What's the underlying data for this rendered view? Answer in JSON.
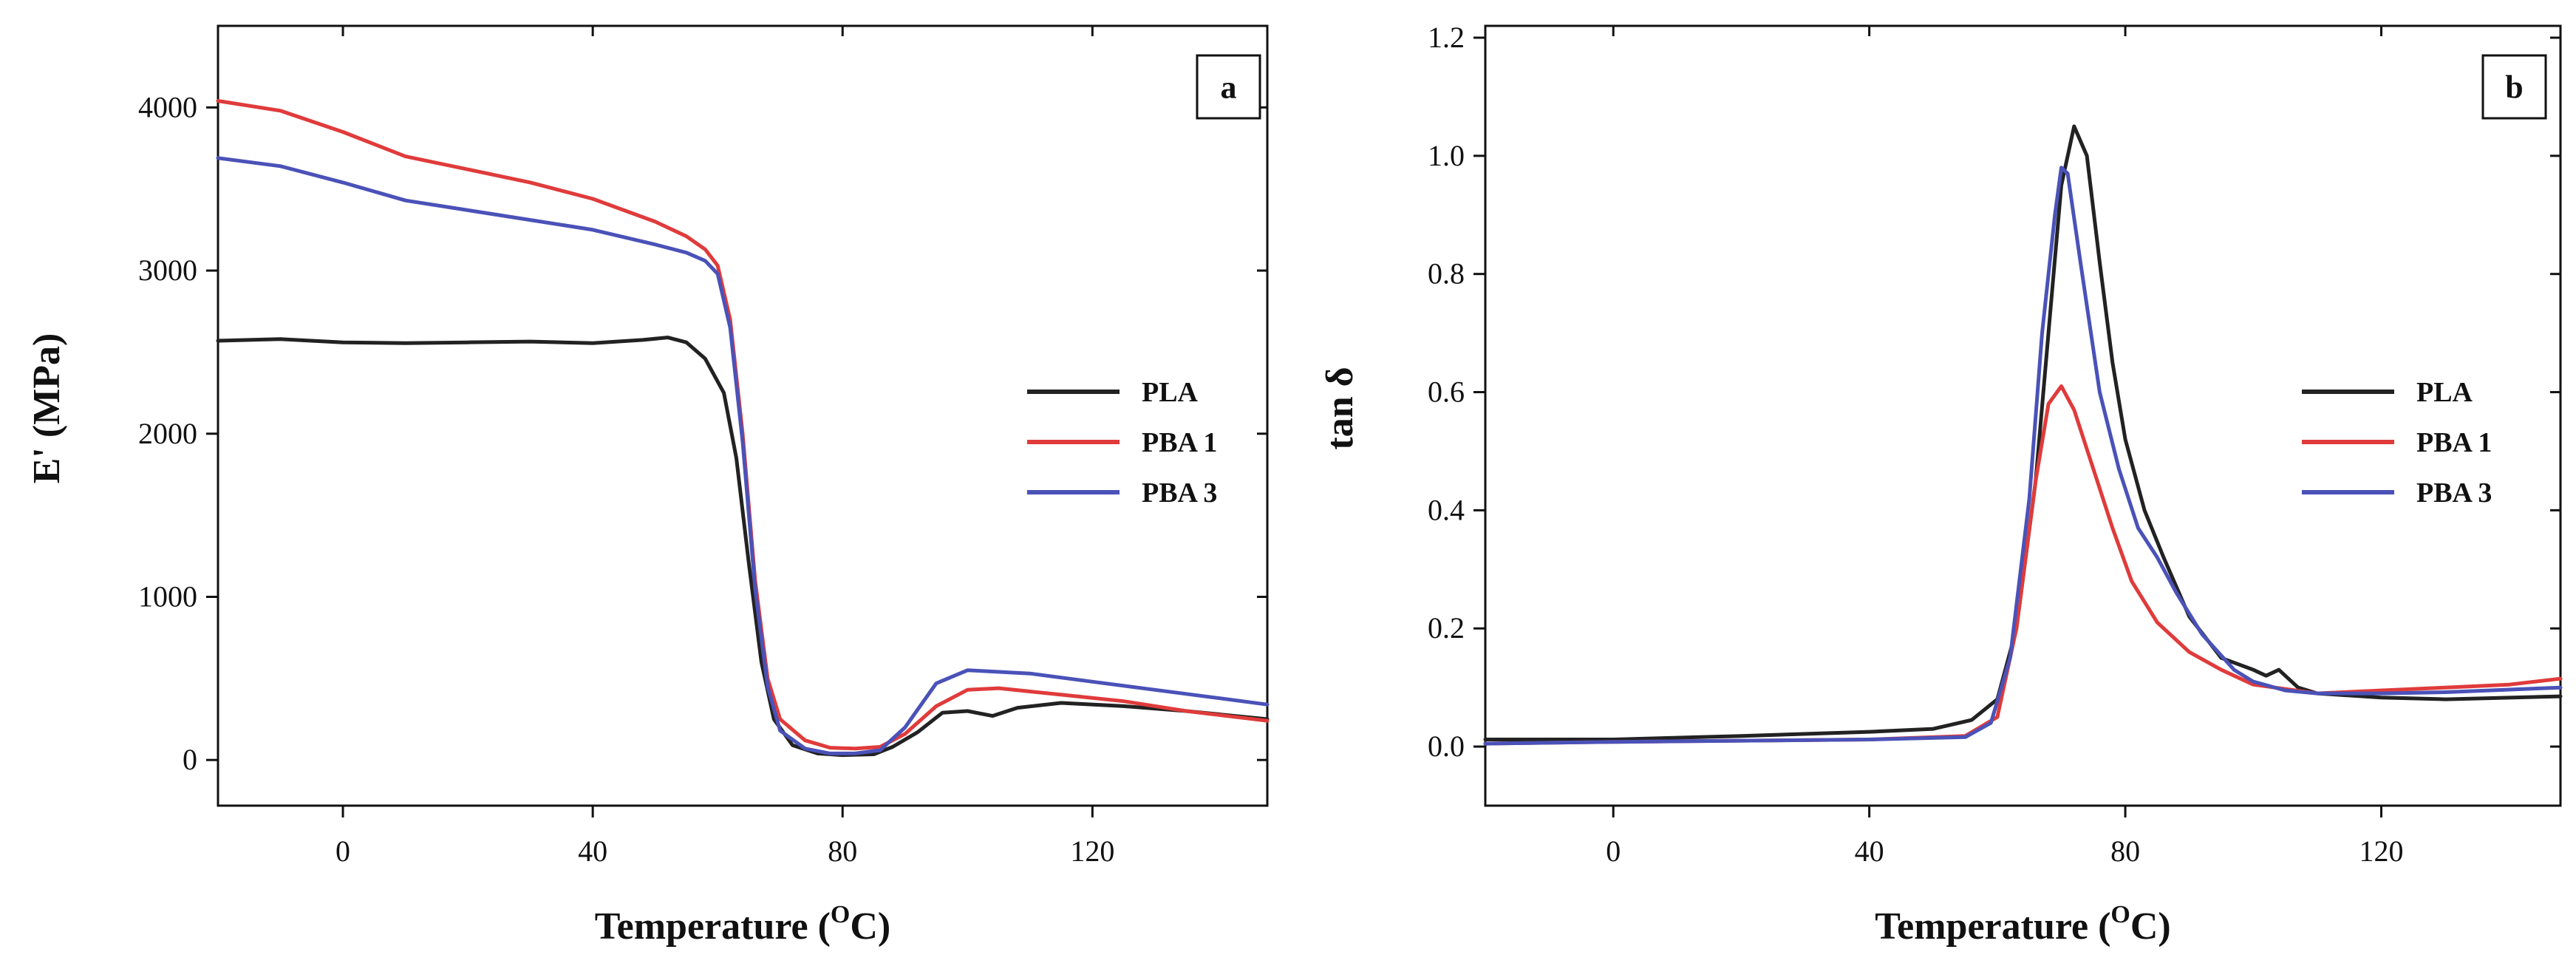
{
  "chart_data": [
    {
      "type": "line",
      "panel_label": "a",
      "xlabel": "Temperature (",
      "xlabel_sup": "O",
      "xlabel_suffix": "C)",
      "ylabel": "E' (MPa)",
      "xlim": [
        -20,
        148
      ],
      "ylim": [
        -280,
        4500
      ],
      "x_ticks": [
        0,
        40,
        80,
        120
      ],
      "y_ticks": [
        0,
        1000,
        2000,
        3000,
        4000
      ],
      "legend_position": "center-right",
      "grid": false,
      "series": [
        {
          "name": "PLA",
          "color": "#222222",
          "points": [
            [
              -20,
              2570
            ],
            [
              -10,
              2580
            ],
            [
              0,
              2560
            ],
            [
              10,
              2555
            ],
            [
              20,
              2560
            ],
            [
              30,
              2565
            ],
            [
              40,
              2555
            ],
            [
              48,
              2575
            ],
            [
              52,
              2590
            ],
            [
              55,
              2560
            ],
            [
              58,
              2460
            ],
            [
              61,
              2250
            ],
            [
              63,
              1850
            ],
            [
              65,
              1200
            ],
            [
              67,
              600
            ],
            [
              69,
              250
            ],
            [
              72,
              90
            ],
            [
              76,
              40
            ],
            [
              80,
              30
            ],
            [
              85,
              35
            ],
            [
              88,
              80
            ],
            [
              92,
              170
            ],
            [
              96,
              290
            ],
            [
              100,
              300
            ],
            [
              104,
              270
            ],
            [
              108,
              320
            ],
            [
              115,
              350
            ],
            [
              125,
              330
            ],
            [
              135,
              300
            ],
            [
              148,
              250
            ]
          ]
        },
        {
          "name": "PBA 1",
          "color": "#e03b3b",
          "points": [
            [
              -20,
              4040
            ],
            [
              -10,
              3980
            ],
            [
              0,
              3850
            ],
            [
              10,
              3700
            ],
            [
              20,
              3620
            ],
            [
              30,
              3540
            ],
            [
              40,
              3440
            ],
            [
              50,
              3300
            ],
            [
              55,
              3210
            ],
            [
              58,
              3130
            ],
            [
              60,
              3030
            ],
            [
              62,
              2700
            ],
            [
              64,
              2000
            ],
            [
              66,
              1100
            ],
            [
              68,
              500
            ],
            [
              70,
              250
            ],
            [
              74,
              120
            ],
            [
              78,
              75
            ],
            [
              82,
              70
            ],
            [
              86,
              80
            ],
            [
              90,
              160
            ],
            [
              95,
              330
            ],
            [
              100,
              430
            ],
            [
              105,
              440
            ],
            [
              115,
              400
            ],
            [
              125,
              360
            ],
            [
              135,
              300
            ],
            [
              148,
              240
            ]
          ]
        },
        {
          "name": "PBA 3",
          "color": "#4a52b8",
          "points": [
            [
              -20,
              3690
            ],
            [
              -10,
              3640
            ],
            [
              0,
              3540
            ],
            [
              10,
              3430
            ],
            [
              20,
              3370
            ],
            [
              30,
              3310
            ],
            [
              40,
              3250
            ],
            [
              50,
              3160
            ],
            [
              55,
              3110
            ],
            [
              58,
              3060
            ],
            [
              60,
              2980
            ],
            [
              62,
              2650
            ],
            [
              64,
              1950
            ],
            [
              66,
              1050
            ],
            [
              68,
              450
            ],
            [
              70,
              180
            ],
            [
              74,
              70
            ],
            [
              78,
              40
            ],
            [
              82,
              40
            ],
            [
              86,
              60
            ],
            [
              90,
              200
            ],
            [
              95,
              470
            ],
            [
              100,
              550
            ],
            [
              110,
              530
            ],
            [
              120,
              480
            ],
            [
              130,
              430
            ],
            [
              140,
              380
            ],
            [
              148,
              340
            ]
          ]
        }
      ]
    },
    {
      "type": "line",
      "panel_label": "b",
      "xlabel": "Temperature (",
      "xlabel_sup": "O",
      "xlabel_suffix": "C)",
      "ylabel": "tan δ",
      "xlim": [
        -20,
        148
      ],
      "ylim": [
        -0.1,
        1.22
      ],
      "x_ticks": [
        0,
        40,
        80,
        120
      ],
      "y_ticks": [
        0.0,
        0.2,
        0.4,
        0.6,
        0.8,
        1.0,
        1.2
      ],
      "y_tick_labels": [
        "0.0",
        "0.2",
        "0.4",
        "0.6",
        "0.8",
        "1.0",
        "1.2"
      ],
      "legend_position": "center-right",
      "grid": false,
      "series": [
        {
          "name": "PLA",
          "color": "#222222",
          "points": [
            [
              -20,
              0.012
            ],
            [
              0,
              0.012
            ],
            [
              20,
              0.018
            ],
            [
              40,
              0.025
            ],
            [
              50,
              0.03
            ],
            [
              56,
              0.045
            ],
            [
              60,
              0.08
            ],
            [
              63,
              0.2
            ],
            [
              66,
              0.45
            ],
            [
              68,
              0.7
            ],
            [
              70,
              0.95
            ],
            [
              72,
              1.05
            ],
            [
              74,
              1.0
            ],
            [
              76,
              0.82
            ],
            [
              78,
              0.65
            ],
            [
              80,
              0.52
            ],
            [
              83,
              0.4
            ],
            [
              86,
              0.32
            ],
            [
              90,
              0.22
            ],
            [
              95,
              0.15
            ],
            [
              100,
              0.13
            ],
            [
              102,
              0.12
            ],
            [
              104,
              0.13
            ],
            [
              107,
              0.1
            ],
            [
              110,
              0.09
            ],
            [
              120,
              0.083
            ],
            [
              130,
              0.08
            ],
            [
              148,
              0.085
            ]
          ]
        },
        {
          "name": "PBA 1",
          "color": "#e03b3b",
          "points": [
            [
              -20,
              0.005
            ],
            [
              0,
              0.008
            ],
            [
              20,
              0.01
            ],
            [
              40,
              0.012
            ],
            [
              55,
              0.018
            ],
            [
              60,
              0.05
            ],
            [
              63,
              0.2
            ],
            [
              66,
              0.45
            ],
            [
              68,
              0.58
            ],
            [
              70,
              0.61
            ],
            [
              72,
              0.57
            ],
            [
              75,
              0.47
            ],
            [
              78,
              0.37
            ],
            [
              81,
              0.28
            ],
            [
              85,
              0.21
            ],
            [
              90,
              0.16
            ],
            [
              95,
              0.13
            ],
            [
              100,
              0.105
            ],
            [
              110,
              0.09
            ],
            [
              120,
              0.095
            ],
            [
              130,
              0.1
            ],
            [
              140,
              0.105
            ],
            [
              148,
              0.115
            ]
          ]
        },
        {
          "name": "PBA 3",
          "color": "#4a52b8",
          "points": [
            [
              -20,
              0.005
            ],
            [
              0,
              0.008
            ],
            [
              20,
              0.01
            ],
            [
              40,
              0.012
            ],
            [
              55,
              0.016
            ],
            [
              59,
              0.04
            ],
            [
              62,
              0.15
            ],
            [
              65,
              0.42
            ],
            [
              67,
              0.7
            ],
            [
              69,
              0.9
            ],
            [
              70,
              0.98
            ],
            [
              71,
              0.97
            ],
            [
              73,
              0.82
            ],
            [
              76,
              0.6
            ],
            [
              79,
              0.47
            ],
            [
              82,
              0.37
            ],
            [
              85,
              0.32
            ],
            [
              88,
              0.26
            ],
            [
              92,
              0.19
            ],
            [
              97,
              0.13
            ],
            [
              100,
              0.11
            ],
            [
              105,
              0.095
            ],
            [
              110,
              0.09
            ],
            [
              120,
              0.09
            ],
            [
              130,
              0.092
            ],
            [
              148,
              0.1
            ]
          ]
        }
      ]
    }
  ]
}
